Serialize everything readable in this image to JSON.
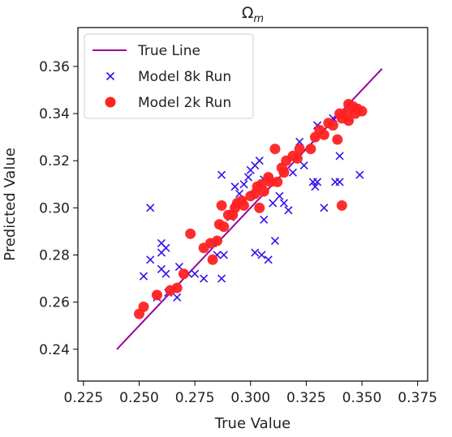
{
  "chart_data": {
    "type": "scatter",
    "title": "Ωm",
    "title_parts": {
      "base": "Ω",
      "sub": "m"
    },
    "xlabel": "True Value",
    "ylabel": "Predicted Value",
    "xlim": [
      0.2225,
      0.3795
    ],
    "ylim": [
      0.2265,
      0.3765
    ],
    "xticks": [
      "0.225",
      "0.250",
      "0.275",
      "0.300",
      "0.325",
      "0.350",
      "0.375"
    ],
    "xtick_values": [
      0.225,
      0.25,
      0.275,
      0.3,
      0.325,
      0.35,
      0.375
    ],
    "yticks": [
      "0.24",
      "0.26",
      "0.28",
      "0.30",
      "0.32",
      "0.34",
      "0.36"
    ],
    "ytick_values": [
      0.24,
      0.26,
      0.28,
      0.3,
      0.32,
      0.34,
      0.36
    ],
    "grid": false,
    "legend_position": "top-left",
    "series": [
      {
        "name": "True Line",
        "kind": "line",
        "color": "#990099",
        "points": [
          [
            0.24,
            0.24
          ],
          [
            0.359,
            0.359
          ]
        ]
      },
      {
        "name": "Model 8k Run",
        "kind": "x-marker",
        "color": "#3311ee",
        "points": [
          [
            0.255,
            0.3
          ],
          [
            0.252,
            0.271
          ],
          [
            0.255,
            0.278
          ],
          [
            0.26,
            0.285
          ],
          [
            0.26,
            0.281
          ],
          [
            0.262,
            0.283
          ],
          [
            0.26,
            0.274
          ],
          [
            0.262,
            0.272
          ],
          [
            0.258,
            0.262
          ],
          [
            0.263,
            0.264
          ],
          [
            0.267,
            0.262
          ],
          [
            0.268,
            0.275
          ],
          [
            0.272,
            0.272
          ],
          [
            0.275,
            0.272
          ],
          [
            0.279,
            0.27
          ],
          [
            0.283,
            0.285
          ],
          [
            0.285,
            0.28
          ],
          [
            0.287,
            0.314
          ],
          [
            0.287,
            0.27
          ],
          [
            0.288,
            0.28
          ],
          [
            0.291,
            0.296
          ],
          [
            0.293,
            0.309
          ],
          [
            0.295,
            0.306
          ],
          [
            0.297,
            0.31
          ],
          [
            0.299,
            0.313
          ],
          [
            0.3,
            0.316
          ],
          [
            0.302,
            0.318
          ],
          [
            0.302,
            0.281
          ],
          [
            0.304,
            0.32
          ],
          [
            0.305,
            0.28
          ],
          [
            0.306,
            0.295
          ],
          [
            0.306,
            0.312
          ],
          [
            0.308,
            0.278
          ],
          [
            0.31,
            0.302
          ],
          [
            0.311,
            0.286
          ],
          [
            0.313,
            0.305
          ],
          [
            0.315,
            0.302
          ],
          [
            0.317,
            0.299
          ],
          [
            0.319,
            0.315
          ],
          [
            0.322,
            0.328
          ],
          [
            0.324,
            0.318
          ],
          [
            0.328,
            0.311
          ],
          [
            0.329,
            0.309
          ],
          [
            0.33,
            0.311
          ],
          [
            0.33,
            0.335
          ],
          [
            0.333,
            0.3
          ],
          [
            0.337,
            0.338
          ],
          [
            0.338,
            0.311
          ],
          [
            0.34,
            0.311
          ],
          [
            0.34,
            0.322
          ],
          [
            0.342,
            0.34
          ],
          [
            0.344,
            0.338
          ],
          [
            0.349,
            0.314
          ]
        ]
      },
      {
        "name": "Model 2k Run",
        "kind": "circle-marker",
        "color": "#ff2222",
        "points": [
          [
            0.25,
            0.255
          ],
          [
            0.252,
            0.258
          ],
          [
            0.258,
            0.263
          ],
          [
            0.264,
            0.265
          ],
          [
            0.267,
            0.266
          ],
          [
            0.27,
            0.272
          ],
          [
            0.273,
            0.289
          ],
          [
            0.279,
            0.283
          ],
          [
            0.282,
            0.285
          ],
          [
            0.283,
            0.278
          ],
          [
            0.285,
            0.286
          ],
          [
            0.286,
            0.293
          ],
          [
            0.288,
            0.292
          ],
          [
            0.287,
            0.301
          ],
          [
            0.29,
            0.297
          ],
          [
            0.292,
            0.297
          ],
          [
            0.293,
            0.3
          ],
          [
            0.294,
            0.302
          ],
          [
            0.296,
            0.303
          ],
          [
            0.297,
            0.301
          ],
          [
            0.3,
            0.305
          ],
          [
            0.302,
            0.306
          ],
          [
            0.303,
            0.309
          ],
          [
            0.304,
            0.3
          ],
          [
            0.305,
            0.31
          ],
          [
            0.306,
            0.307
          ],
          [
            0.308,
            0.313
          ],
          [
            0.309,
            0.311
          ],
          [
            0.311,
            0.325
          ],
          [
            0.312,
            0.311
          ],
          [
            0.314,
            0.317
          ],
          [
            0.315,
            0.315
          ],
          [
            0.316,
            0.32
          ],
          [
            0.319,
            0.322
          ],
          [
            0.321,
            0.321
          ],
          [
            0.322,
            0.325
          ],
          [
            0.327,
            0.325
          ],
          [
            0.329,
            0.33
          ],
          [
            0.331,
            0.333
          ],
          [
            0.333,
            0.331
          ],
          [
            0.335,
            0.336
          ],
          [
            0.337,
            0.335
          ],
          [
            0.339,
            0.329
          ],
          [
            0.34,
            0.34
          ],
          [
            0.341,
            0.338
          ],
          [
            0.343,
            0.34
          ],
          [
            0.344,
            0.344
          ],
          [
            0.346,
            0.343
          ],
          [
            0.347,
            0.34
          ],
          [
            0.348,
            0.342
          ],
          [
            0.35,
            0.341
          ],
          [
            0.341,
            0.301
          ],
          [
            0.344,
            0.337
          ]
        ]
      }
    ]
  }
}
